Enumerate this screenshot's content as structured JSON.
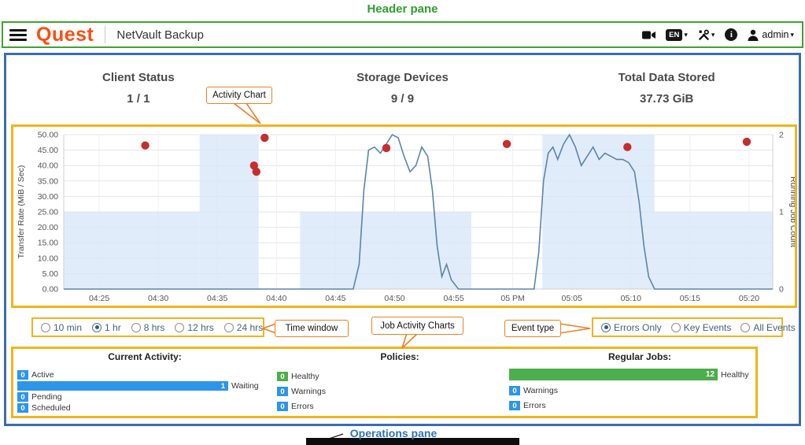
{
  "annotations": {
    "header_pane": {
      "label": "Header pane"
    },
    "activity_chart": {
      "label": "Activity Chart"
    },
    "time_window": {
      "label": "Time window"
    },
    "job_activity_charts": {
      "label": "Job Activity Charts"
    },
    "event_type": {
      "label": "Event type"
    },
    "operations_pane": {
      "label": "Operations pane"
    }
  },
  "header": {
    "brand": "Quest",
    "product_title": "NetVault Backup",
    "language_badge": "EN",
    "user_menu": "admin",
    "caret": "▾",
    "info_glyph": "i"
  },
  "summary_tiles": [
    {
      "label": "Client Status",
      "value": "1 / 1"
    },
    {
      "label": "Storage Devices",
      "value": "9 / 9"
    },
    {
      "label": "Total Data Stored",
      "value": "37.73 GiB"
    }
  ],
  "chart_data": {
    "type": "line",
    "title": "Activity Chart",
    "y_left": {
      "label": "Transfer Rate (MiB / Sec)",
      "min": 0,
      "max": 50,
      "tick_step": 5
    },
    "y_right": {
      "label": "Running Job Count",
      "ticks": [
        0,
        1,
        2
      ],
      "max": 2
    },
    "x_axis": {
      "domain_minutes": [
        2,
        62
      ],
      "ticks": [
        {
          "t": 5,
          "label": "04:25"
        },
        {
          "t": 10,
          "label": "04:30"
        },
        {
          "t": 15,
          "label": "04:35"
        },
        {
          "t": 20,
          "label": "04:40"
        },
        {
          "t": 25,
          "label": "04:45"
        },
        {
          "t": 30,
          "label": "04:50"
        },
        {
          "t": 35,
          "label": "04:55"
        },
        {
          "t": 40,
          "label": "05 PM"
        },
        {
          "t": 45,
          "label": "05:05"
        },
        {
          "t": 50,
          "label": "05:10"
        },
        {
          "t": 55,
          "label": "05:15"
        },
        {
          "t": 60,
          "label": "05:20"
        }
      ]
    },
    "running_job_count_area": [
      {
        "from": 2,
        "to": 13.5,
        "count": 1
      },
      {
        "from": 13.5,
        "to": 18.5,
        "count": 2
      },
      {
        "from": 18.5,
        "to": 22,
        "count": 0
      },
      {
        "from": 22,
        "to": 36.5,
        "count": 1
      },
      {
        "from": 36.5,
        "to": 42.5,
        "count": 0
      },
      {
        "from": 42.5,
        "to": 52,
        "count": 2
      },
      {
        "from": 52,
        "to": 62,
        "count": 1
      }
    ],
    "transfer_rate_line": [
      [
        2,
        0
      ],
      [
        26.5,
        0
      ],
      [
        27,
        8
      ],
      [
        27.4,
        32
      ],
      [
        27.8,
        45
      ],
      [
        28.3,
        46
      ],
      [
        28.8,
        44
      ],
      [
        29.3,
        47
      ],
      [
        29.8,
        50
      ],
      [
        30.3,
        49
      ],
      [
        30.8,
        43
      ],
      [
        31.3,
        38
      ],
      [
        31.8,
        40
      ],
      [
        32.3,
        46
      ],
      [
        32.8,
        43
      ],
      [
        33.2,
        32
      ],
      [
        33.6,
        14
      ],
      [
        34,
        4
      ],
      [
        34.4,
        8
      ],
      [
        34.8,
        3
      ],
      [
        35.4,
        0
      ],
      [
        41.8,
        0
      ],
      [
        42.2,
        12
      ],
      [
        42.6,
        35
      ],
      [
        43,
        44
      ],
      [
        43.4,
        46
      ],
      [
        43.8,
        42
      ],
      [
        44.3,
        47
      ],
      [
        44.8,
        50
      ],
      [
        45.3,
        46
      ],
      [
        45.8,
        40
      ],
      [
        46.3,
        43
      ],
      [
        46.8,
        46
      ],
      [
        47.3,
        42
      ],
      [
        47.8,
        44
      ],
      [
        48.3,
        43
      ],
      [
        48.8,
        42
      ],
      [
        49.3,
        42
      ],
      [
        49.8,
        41
      ],
      [
        50.3,
        38
      ],
      [
        50.7,
        28
      ],
      [
        51.1,
        14
      ],
      [
        51.5,
        4
      ],
      [
        52,
        0
      ],
      [
        62,
        0
      ]
    ],
    "error_events": [
      [
        8.9,
        46.5
      ],
      [
        18.1,
        40
      ],
      [
        18.3,
        38
      ],
      [
        19,
        49
      ],
      [
        29.3,
        45.7
      ],
      [
        39.5,
        47
      ],
      [
        49.7,
        46
      ],
      [
        59.8,
        47.7
      ]
    ],
    "colors": {
      "area": "#d9e7f8",
      "line": "#5b84ad",
      "error_dot": "#c62d2d"
    }
  },
  "time_window_options": [
    {
      "label": "10 min",
      "selected": false
    },
    {
      "label": "1 hr",
      "selected": true
    },
    {
      "label": "8 hrs",
      "selected": false
    },
    {
      "label": "12 hrs",
      "selected": false
    },
    {
      "label": "24 hrs",
      "selected": false
    }
  ],
  "event_type_options": [
    {
      "label": "Errors Only",
      "selected": true
    },
    {
      "label": "Key Events",
      "selected": false
    },
    {
      "label": "All Events",
      "selected": false
    }
  ],
  "operations": {
    "current_activity": {
      "title": "Current Activity:",
      "rows": [
        {
          "label": "Active",
          "value": 0,
          "color": "blue"
        },
        {
          "label": "Waiting",
          "value": 1,
          "color": "blue"
        },
        {
          "label": "Pending",
          "value": 0,
          "color": "blue"
        },
        {
          "label": "Scheduled",
          "value": 0,
          "color": "blue"
        }
      ]
    },
    "policies": {
      "title": "Policies:",
      "rows": [
        {
          "label": "Healthy",
          "value": 0,
          "color": "green"
        },
        {
          "label": "Warnings",
          "value": 0,
          "color": "blue"
        },
        {
          "label": "Errors",
          "value": 0,
          "color": "blue"
        }
      ]
    },
    "regular_jobs": {
      "title": "Regular Jobs:",
      "rows": [
        {
          "label": "Healthy",
          "value": 12,
          "color": "green"
        },
        {
          "label": "Warnings",
          "value": 0,
          "color": "blue"
        },
        {
          "label": "Errors",
          "value": 0,
          "color": "blue"
        }
      ]
    }
  },
  "colors": {
    "annotation_green": "#2f9e2f",
    "annotation_orange": "#e98125",
    "pane_border_blue": "#3a6cb4",
    "pane_border_gold": "#f0b41c",
    "brand_orange": "#fb4e14",
    "bar_blue": "#2e95e8",
    "bar_green": "#4cae4c",
    "operations_label_blue": "#2e75b6"
  }
}
